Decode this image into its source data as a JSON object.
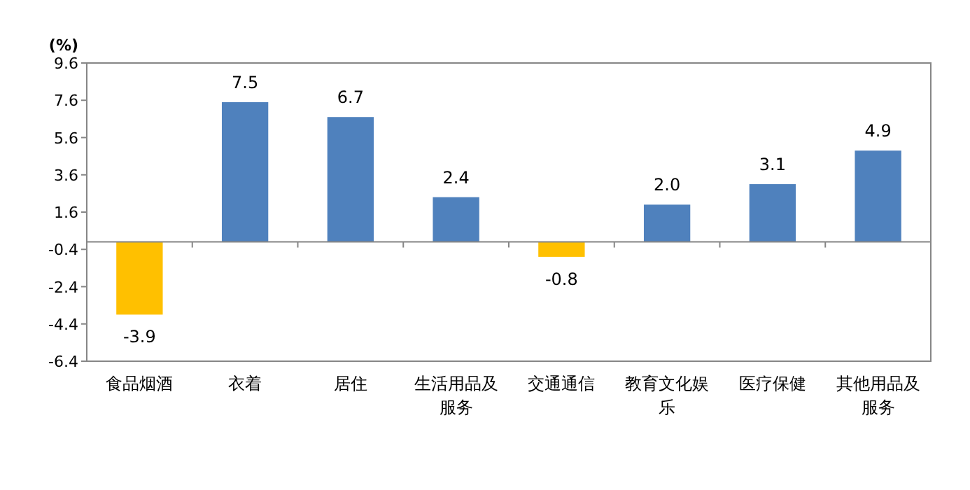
{
  "chart_data": {
    "type": "bar",
    "ylabel": "(%)",
    "categories": [
      "食品烟酒",
      "衣着",
      "居住",
      "生活用品及服务",
      "交通通信",
      "教育文化娱乐",
      "医疗保健",
      "其他用品及服务"
    ],
    "values": [
      -3.9,
      7.5,
      6.7,
      2.4,
      -0.8,
      2.0,
      3.1,
      4.9
    ],
    "colors": [
      "#ffc000",
      "#4f81bd",
      "#4f81bd",
      "#4f81bd",
      "#ffc000",
      "#4f81bd",
      "#4f81bd",
      "#4f81bd"
    ],
    "ylim": [
      -6.4,
      9.6
    ],
    "yticks": [
      -6.4,
      -4.4,
      -2.4,
      -0.4,
      1.6,
      3.6,
      5.6,
      7.6,
      9.6
    ],
    "value_labels": [
      "-3.9",
      "7.5",
      "6.7",
      "2.4",
      "-0.8",
      "2.0",
      "3.1",
      "4.9"
    ],
    "grid": false
  }
}
